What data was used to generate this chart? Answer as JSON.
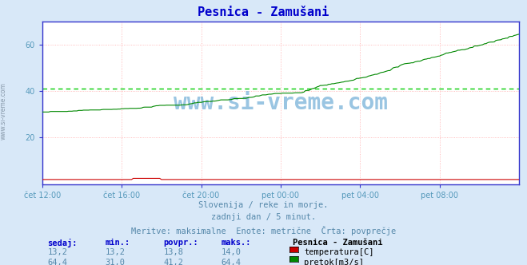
{
  "title": "Pesnica - Zamušani",
  "bg_color": "#d8e8f8",
  "plot_bg_color": "#ffffff",
  "grid_color": "#ffaaaa",
  "spine_color": "#3333cc",
  "xticklabels": [
    "čet 12:00",
    "čet 16:00",
    "čet 20:00",
    "pet 00:00",
    "pet 04:00",
    "pet 08:00"
  ],
  "xtick_positions": [
    0,
    48,
    96,
    144,
    192,
    240
  ],
  "yticks": [
    20,
    40,
    60
  ],
  "ylim": [
    0,
    70
  ],
  "xlim": [
    0,
    288
  ],
  "temp_color": "#cc0000",
  "flow_color": "#008800",
  "avg_flow_color": "#00cc00",
  "watermark": "www.si-vreme.com",
  "watermark_color": "#88bbdd",
  "subtitle1": "Slovenija / reke in morje.",
  "subtitle2": "zadnji dan / 5 minut.",
  "subtitle3": "Meritve: maksimalne  Enote: metrične  Črta: povprečje",
  "legend_title": "Pesnica - Zamušani",
  "legend_items": [
    "temperatura[C]",
    "pretok[m3/s]"
  ],
  "legend_colors": [
    "#cc0000",
    "#008800"
  ],
  "table_headers": [
    "sedaj:",
    "min.:",
    "povpr.:",
    "maks.:"
  ],
  "table_temp": [
    "13,2",
    "13,2",
    "13,8",
    "14,0"
  ],
  "table_flow": [
    "64,4",
    "31,0",
    "41,2",
    "64,4"
  ],
  "avg_flow": 41.2,
  "n_points": 289,
  "temp_min": 13.2,
  "temp_max": 14.0,
  "flow_min": 31.0,
  "flow_max": 64.4,
  "temp_y_value": 2.0
}
